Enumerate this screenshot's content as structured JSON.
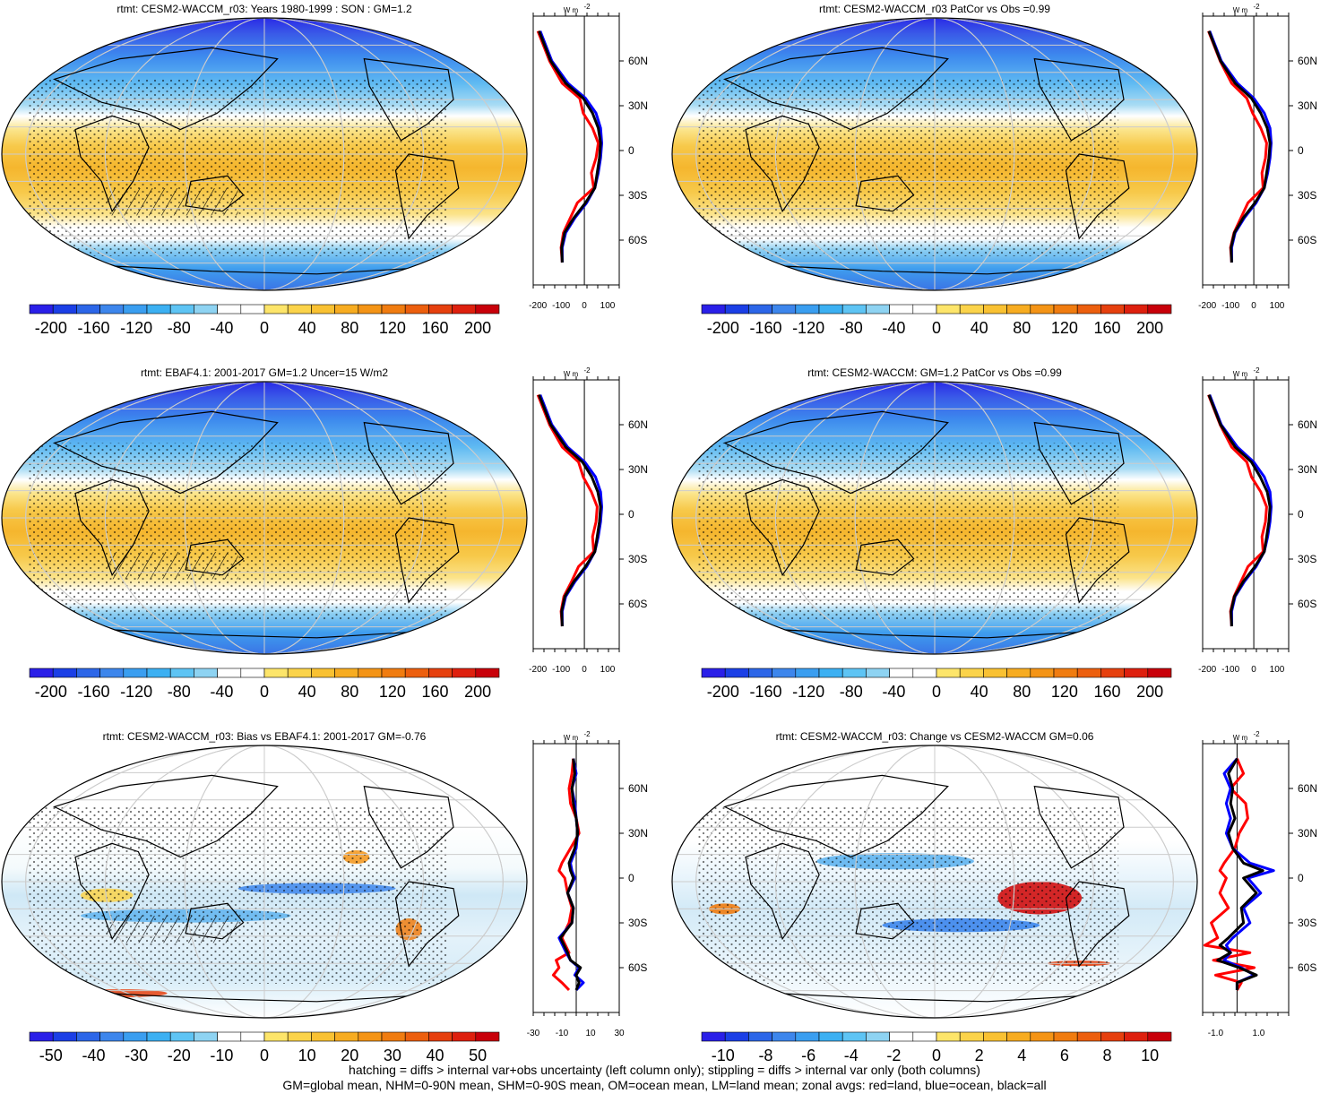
{
  "figure": {
    "footer_lines": [
      "hatching = diffs > internal var+obs uncertainty (left column only); stippling = diffs > internal var only (both columns)",
      "GM=global mean, NHM=0-90N mean, SHM=0-90S mean, OM=ocean mean, LM=land mean; zonal avgs: red=land, blue=ocean, black=all"
    ],
    "profile_unit": "W m",
    "profile_unit_exp": "-2"
  },
  "chart_data": [
    {
      "type": "heatmap",
      "title": "rtmt: CESM2-WACCM_r03: Years 1980-1999 : SON : GM=1.2",
      "field": "mean",
      "colorbar_ticks": [
        "-200",
        "-160",
        "-120",
        "-80",
        "-40",
        "0",
        "40",
        "80",
        "120",
        "160",
        "200"
      ],
      "colorbar_range": [
        -220,
        220
      ],
      "profile": {
        "x_ticks": [
          "-200",
          "-100",
          "0",
          "100"
        ],
        "xlim": [
          -220,
          150
        ],
        "lat_ticks": [
          "60N",
          "30N",
          "0",
          "30S",
          "60S"
        ],
        "lat_values": [
          60,
          30,
          0,
          -30,
          -60
        ],
        "series": [
          {
            "name": "land",
            "color": "#ff0000",
            "lat": [
              80,
              60,
              45,
              35,
              25,
              15,
              5,
              -5,
              -15,
              -25,
              -35,
              -45,
              -55,
              -65,
              -75
            ],
            "values": [
              -200,
              -150,
              -95,
              -20,
              -5,
              35,
              60,
              50,
              30,
              40,
              -30,
              -60,
              -90,
              -100,
              -95
            ]
          },
          {
            "name": "ocean",
            "color": "#0000ff",
            "lat": [
              80,
              60,
              45,
              35,
              25,
              15,
              5,
              -5,
              -15,
              -25,
              -35,
              -45,
              -55,
              -65,
              -75
            ],
            "values": [
              -190,
              -140,
              -70,
              5,
              50,
              70,
              75,
              70,
              60,
              45,
              10,
              -40,
              -80,
              -95,
              -95
            ]
          },
          {
            "name": "all",
            "color": "#000000",
            "lat": [
              80,
              60,
              45,
              35,
              25,
              15,
              5,
              -5,
              -15,
              -25,
              -35,
              -45,
              -55,
              -65,
              -75
            ],
            "values": [
              -195,
              -145,
              -80,
              -5,
              35,
              60,
              70,
              65,
              55,
              45,
              5,
              -45,
              -85,
              -98,
              -95
            ]
          }
        ]
      }
    },
    {
      "type": "heatmap",
      "title": "rtmt: CESM2-WACCM_r03 PatCor vs Obs =0.99",
      "field": "mean",
      "colorbar_ticks": [
        "-200",
        "-160",
        "-120",
        "-80",
        "-40",
        "0",
        "40",
        "80",
        "120",
        "160",
        "200"
      ],
      "colorbar_range": [
        -220,
        220
      ],
      "profile": {
        "x_ticks": [
          "-200",
          "-100",
          "0",
          "100"
        ],
        "xlim": [
          -220,
          150
        ],
        "lat_ticks": [
          "60N",
          "30N",
          "0",
          "30S",
          "60S"
        ],
        "lat_values": [
          60,
          30,
          0,
          -30,
          -60
        ],
        "series": [
          {
            "name": "land",
            "color": "#ff0000",
            "lat": [
              80,
              60,
              45,
              35,
              25,
              15,
              5,
              -5,
              -15,
              -25,
              -35,
              -45,
              -55,
              -65,
              -75
            ],
            "values": [
              -195,
              -145,
              -95,
              -30,
              -5,
              30,
              55,
              50,
              35,
              40,
              -25,
              -55,
              -85,
              -100,
              -95
            ]
          },
          {
            "name": "ocean",
            "color": "#0000ff",
            "lat": [
              80,
              60,
              45,
              35,
              25,
              15,
              5,
              -5,
              -15,
              -25,
              -35,
              -45,
              -55,
              -65,
              -75
            ],
            "values": [
              -190,
              -140,
              -70,
              0,
              45,
              70,
              75,
              70,
              60,
              45,
              10,
              -40,
              -80,
              -95,
              -95
            ]
          },
          {
            "name": "all",
            "color": "#000000",
            "lat": [
              80,
              60,
              45,
              35,
              25,
              15,
              5,
              -5,
              -15,
              -25,
              -35,
              -45,
              -55,
              -65,
              -75
            ],
            "values": [
              -193,
              -143,
              -80,
              -10,
              30,
              58,
              70,
              65,
              55,
              45,
              5,
              -45,
              -83,
              -98,
              -95
            ]
          }
        ]
      }
    },
    {
      "type": "heatmap",
      "title": "rtmt: EBAF4.1: 2001-2017 GM=1.2 Uncer=15 W/m2",
      "field": "mean",
      "colorbar_ticks": [
        "-200",
        "-160",
        "-120",
        "-80",
        "-40",
        "0",
        "40",
        "80",
        "120",
        "160",
        "200"
      ],
      "colorbar_range": [
        -220,
        220
      ],
      "profile": {
        "x_ticks": [
          "-200",
          "-100",
          "0",
          "100"
        ],
        "xlim": [
          -220,
          150
        ],
        "lat_ticks": [
          "60N",
          "30N",
          "0",
          "30S",
          "60S"
        ],
        "lat_values": [
          60,
          30,
          0,
          -30,
          -60
        ],
        "series": [
          {
            "name": "land",
            "color": "#ff0000",
            "lat": [
              80,
              60,
              45,
              35,
              25,
              15,
              5,
              -5,
              -15,
              -25,
              -35,
              -45,
              -55,
              -65,
              -75
            ],
            "values": [
              -200,
              -150,
              -95,
              -25,
              -5,
              30,
              55,
              50,
              35,
              40,
              -25,
              -55,
              -88,
              -100,
              -95
            ]
          },
          {
            "name": "ocean",
            "color": "#0000ff",
            "lat": [
              80,
              60,
              45,
              35,
              25,
              15,
              5,
              -5,
              -15,
              -25,
              -35,
              -45,
              -55,
              -65,
              -75
            ],
            "values": [
              -190,
              -140,
              -72,
              2,
              48,
              70,
              75,
              70,
              60,
              45,
              10,
              -40,
              -80,
              -95,
              -95
            ]
          },
          {
            "name": "all",
            "color": "#000000",
            "lat": [
              80,
              60,
              45,
              35,
              25,
              15,
              5,
              -5,
              -15,
              -25,
              -35,
              -45,
              -55,
              -65,
              -75
            ],
            "values": [
              -195,
              -145,
              -80,
              -8,
              32,
              58,
              70,
              65,
              55,
              45,
              5,
              -45,
              -84,
              -98,
              -95
            ]
          }
        ]
      }
    },
    {
      "type": "heatmap",
      "title": "rtmt: CESM2-WACCM: GM=1.2 PatCor vs Obs =0.99",
      "field": "mean",
      "colorbar_ticks": [
        "-200",
        "-160",
        "-120",
        "-80",
        "-40",
        "0",
        "40",
        "80",
        "120",
        "160",
        "200"
      ],
      "colorbar_range": [
        -220,
        220
      ],
      "profile": {
        "x_ticks": [
          "-200",
          "-100",
          "0",
          "100"
        ],
        "xlim": [
          -220,
          150
        ],
        "lat_ticks": [
          "60N",
          "30N",
          "0",
          "30S",
          "60S"
        ],
        "lat_values": [
          60,
          30,
          0,
          -30,
          -60
        ],
        "series": [
          {
            "name": "land",
            "color": "#ff0000",
            "lat": [
              80,
              60,
              45,
              35,
              25,
              15,
              5,
              -5,
              -15,
              -25,
              -35,
              -45,
              -55,
              -65,
              -75
            ],
            "values": [
              -195,
              -145,
              -95,
              -30,
              -10,
              30,
              55,
              50,
              35,
              40,
              -25,
              -55,
              -85,
              -100,
              -95
            ]
          },
          {
            "name": "ocean",
            "color": "#0000ff",
            "lat": [
              80,
              60,
              45,
              35,
              25,
              15,
              5,
              -5,
              -15,
              -25,
              -35,
              -45,
              -55,
              -65,
              -75
            ],
            "values": [
              -190,
              -140,
              -70,
              0,
              45,
              70,
              75,
              70,
              60,
              45,
              10,
              -40,
              -80,
              -95,
              -95
            ]
          },
          {
            "name": "all",
            "color": "#000000",
            "lat": [
              80,
              60,
              45,
              35,
              25,
              15,
              5,
              -5,
              -15,
              -25,
              -35,
              -45,
              -55,
              -65,
              -75
            ],
            "values": [
              -193,
              -143,
              -80,
              -10,
              28,
              58,
              70,
              65,
              55,
              45,
              5,
              -45,
              -83,
              -98,
              -95
            ]
          }
        ]
      }
    },
    {
      "type": "heatmap",
      "title": "rtmt: CESM2-WACCM_r03: Bias vs EBAF4.1: 2001-2017  GM=-0.76",
      "field": "diff",
      "colorbar_ticks": [
        "-50",
        "-40",
        "-30",
        "-20",
        "-10",
        "0",
        "10",
        "20",
        "30",
        "40",
        "50"
      ],
      "colorbar_range": [
        -55,
        55
      ],
      "profile": {
        "x_ticks": [
          "-30",
          "-10",
          "10",
          "30"
        ],
        "xlim": [
          -30,
          30
        ],
        "lat_ticks": [
          "60N",
          "30N",
          "0",
          "30S",
          "60S"
        ],
        "lat_values": [
          60,
          30,
          0,
          -30,
          -60
        ],
        "series": [
          {
            "name": "land",
            "color": "#ff0000",
            "lat": [
              80,
              70,
              60,
              50,
              40,
              30,
              20,
              10,
              5,
              0,
              -10,
              -20,
              -30,
              -40,
              -50,
              -55,
              -60,
              -65,
              -70,
              -75
            ],
            "values": [
              -2,
              -3,
              -5,
              -4,
              0,
              2,
              -4,
              -10,
              -12,
              -8,
              -6,
              -3,
              -5,
              -10,
              -5,
              -14,
              -12,
              -16,
              -10,
              -5
            ]
          },
          {
            "name": "ocean",
            "color": "#0000ff",
            "lat": [
              80,
              70,
              60,
              50,
              40,
              30,
              20,
              10,
              5,
              0,
              -10,
              -20,
              -30,
              -40,
              -50,
              -55,
              -60,
              -65,
              -70,
              -75
            ],
            "values": [
              -2,
              0,
              -3,
              -1,
              0,
              1,
              0,
              -4,
              -3,
              -1,
              -6,
              -2,
              -3,
              -12,
              -7,
              -4,
              2,
              -1,
              5,
              0
            ]
          },
          {
            "name": "all",
            "color": "#000000",
            "lat": [
              80,
              70,
              60,
              50,
              40,
              30,
              20,
              10,
              5,
              0,
              -10,
              -20,
              -30,
              -40,
              -50,
              -55,
              -60,
              -65,
              -70,
              -75
            ],
            "values": [
              -2,
              -1,
              -3,
              -2,
              0,
              1,
              -1,
              -5,
              -4,
              -2,
              -6,
              -2,
              -3,
              -11,
              -6,
              -4,
              3,
              0,
              2,
              0
            ]
          }
        ]
      }
    },
    {
      "type": "heatmap",
      "title": "rtmt: CESM2-WACCM_r03: Change vs CESM2-WACCM GM=0.06",
      "field": "change",
      "colorbar_ticks": [
        "-10",
        "-8",
        "-6",
        "-4",
        "-2",
        "0",
        "2",
        "4",
        "6",
        "8",
        "10"
      ],
      "colorbar_range": [
        -11,
        11
      ],
      "profile": {
        "x_ticks": [
          "-1.0",
          "1.0"
        ],
        "x_tick_values": [
          -1,
          1
        ],
        "xlim": [
          -1.6,
          2.4
        ],
        "lat_ticks": [
          "60N",
          "30N",
          "0",
          "30S",
          "60S"
        ],
        "lat_values": [
          60,
          30,
          0,
          -30,
          -60
        ],
        "series": [
          {
            "name": "land",
            "color": "#ff0000",
            "lat": [
              80,
              70,
              60,
              50,
              40,
              30,
              20,
              10,
              5,
              0,
              -10,
              -20,
              -30,
              -40,
              -45,
              -50,
              -55,
              -60,
              -65,
              -70,
              -75
            ],
            "values": [
              0,
              0.3,
              -0.3,
              0.4,
              0.5,
              0.1,
              -0.1,
              -0.6,
              -0.8,
              -0.5,
              -0.8,
              -0.4,
              -1.2,
              -0.9,
              -1.5,
              0.6,
              -1.1,
              0.8,
              -1.0,
              0.2,
              0
            ]
          },
          {
            "name": "ocean",
            "color": "#0000ff",
            "lat": [
              80,
              70,
              60,
              50,
              40,
              30,
              20,
              10,
              5,
              0,
              -10,
              -20,
              -30,
              -40,
              -45,
              -50,
              -55,
              -60,
              -65,
              -70,
              -75
            ],
            "values": [
              0,
              -0.6,
              -0.3,
              -0.5,
              -0.3,
              -0.5,
              -0.2,
              0.6,
              1.7,
              0.5,
              1.1,
              0.3,
              0.6,
              -0.2,
              -0.5,
              -0.3,
              -0.6,
              0.2,
              0.8,
              0,
              0
            ]
          },
          {
            "name": "all",
            "color": "#000000",
            "lat": [
              80,
              70,
              60,
              50,
              40,
              30,
              20,
              10,
              5,
              0,
              -10,
              -20,
              -30,
              -40,
              -45,
              -50,
              -55,
              -60,
              -65,
              -70,
              -75
            ],
            "values": [
              0,
              -0.4,
              -0.2,
              -0.3,
              -0.1,
              -0.4,
              -0.2,
              0.3,
              1.2,
              0.3,
              0.9,
              0.2,
              0.3,
              -0.4,
              -0.8,
              -0.3,
              -0.9,
              0.1,
              0.9,
              0,
              0
            ]
          }
        ]
      }
    }
  ]
}
